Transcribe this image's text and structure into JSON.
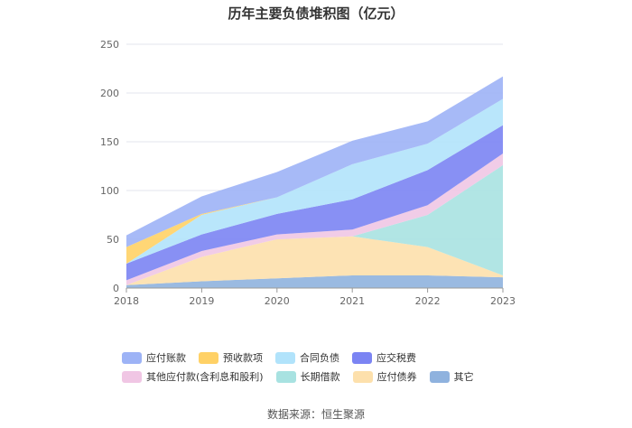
{
  "title": "历年主要负债堆积图（亿元）",
  "source": "数据来源：恒生聚源",
  "chart_data": {
    "type": "area",
    "stacked": true,
    "title": "历年主要负债堆积图（亿元）",
    "categories": [
      "2018",
      "2019",
      "2020",
      "2021",
      "2022",
      "2023"
    ],
    "ylim": [
      0,
      250
    ],
    "yticks": [
      0,
      50,
      100,
      150,
      200,
      250
    ],
    "grid": true,
    "legend_position": "bottom",
    "series": [
      {
        "name": "其它",
        "color": "#8fb2de",
        "values": [
          3,
          7,
          10,
          13,
          13,
          11
        ]
      },
      {
        "name": "应付债券",
        "color": "#fde0ac",
        "values": [
          0,
          25,
          40,
          40,
          29,
          2
        ]
      },
      {
        "name": "长期借款",
        "color": "#a8e2e1",
        "values": [
          0,
          0,
          0,
          0,
          33,
          113
        ]
      },
      {
        "name": "其他应付款(含利息和股利)",
        "color": "#f0c6e4",
        "values": [
          5,
          6,
          5,
          7,
          10,
          12
        ]
      },
      {
        "name": "应交税费",
        "color": "#7b84f3",
        "values": [
          17,
          17,
          21,
          31,
          36,
          29
        ]
      },
      {
        "name": "合同负债",
        "color": "#b1e3fb",
        "values": [
          0,
          20,
          17,
          36,
          27,
          27
        ]
      },
      {
        "name": "预收款项",
        "color": "#ffd166",
        "values": [
          17,
          1,
          0,
          0,
          0,
          0
        ]
      },
      {
        "name": "应付账款",
        "color": "#9db3f6",
        "values": [
          12,
          18,
          26,
          24,
          23,
          23
        ]
      }
    ]
  },
  "legend_order": [
    "应付账款",
    "预收款项",
    "合同负债",
    "应交税费",
    "其他应付款(含利息和股利)",
    "长期借款",
    "应付债券",
    "其它"
  ]
}
